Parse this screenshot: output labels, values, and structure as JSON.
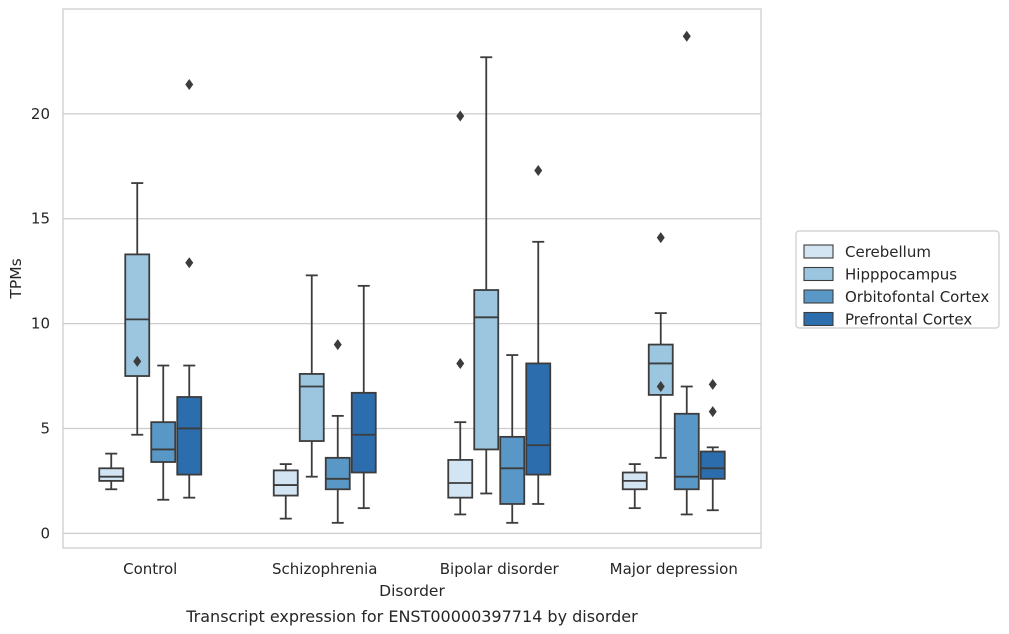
{
  "chart_data": {
    "type": "box",
    "caption": "Transcript expression for ENST00000397714 by disorder",
    "xlabel": "Disorder",
    "ylabel": "TPMs",
    "ylim": [
      -0.7,
      25
    ],
    "yticks": [
      0,
      5,
      10,
      15,
      20
    ],
    "grid": "horizontal",
    "legend_position": "right",
    "categories": [
      "Control",
      "Schizophrenia",
      "Bipolar disorder",
      "Major depression"
    ],
    "series": [
      {
        "name": "Cerebellum",
        "color": "#d3e4f3",
        "boxes": [
          {
            "whislo": 2.1,
            "q1": 2.5,
            "med": 2.7,
            "q3": 3.1,
            "whishi": 3.8,
            "fliers": []
          },
          {
            "whislo": 0.7,
            "q1": 1.8,
            "med": 2.3,
            "q3": 3.0,
            "whishi": 3.3,
            "fliers": []
          },
          {
            "whislo": 0.9,
            "q1": 1.7,
            "med": 2.4,
            "q3": 3.5,
            "whishi": 5.3,
            "fliers": [
              19.9,
              8.1
            ]
          },
          {
            "whislo": 1.2,
            "q1": 2.1,
            "med": 2.5,
            "q3": 2.9,
            "whishi": 3.3,
            "fliers": []
          }
        ]
      },
      {
        "name": "Hipppocampus",
        "color": "#9cc5df",
        "boxes": [
          {
            "whislo": 4.7,
            "q1": 7.5,
            "med": 10.2,
            "q3": 13.3,
            "whishi": 16.7,
            "fliers": [
              8.2
            ]
          },
          {
            "whislo": 2.7,
            "q1": 4.4,
            "med": 7.0,
            "q3": 7.6,
            "whishi": 12.3,
            "fliers": []
          },
          {
            "whislo": 1.9,
            "q1": 4.0,
            "med": 10.3,
            "q3": 11.6,
            "whishi": 22.7,
            "fliers": []
          },
          {
            "whislo": 3.6,
            "q1": 6.6,
            "med": 8.1,
            "q3": 9.0,
            "whishi": 10.5,
            "fliers": [
              14.1,
              7.0
            ]
          }
        ]
      },
      {
        "name": "Orbitofontal Cortex",
        "color": "#5998c6",
        "boxes": [
          {
            "whislo": 1.6,
            "q1": 3.4,
            "med": 4.0,
            "q3": 5.3,
            "whishi": 8.0,
            "fliers": []
          },
          {
            "whislo": 0.5,
            "q1": 2.1,
            "med": 2.6,
            "q3": 3.6,
            "whishi": 5.6,
            "fliers": [
              9.0
            ]
          },
          {
            "whislo": 0.5,
            "q1": 1.4,
            "med": 3.1,
            "q3": 4.6,
            "whishi": 8.5,
            "fliers": []
          },
          {
            "whislo": 0.9,
            "q1": 2.1,
            "med": 2.7,
            "q3": 5.7,
            "whishi": 7.0,
            "fliers": [
              23.7
            ]
          }
        ]
      },
      {
        "name": "Prefrontal Cortex",
        "color": "#2c6ead",
        "boxes": [
          {
            "whislo": 1.7,
            "q1": 2.8,
            "med": 5.0,
            "q3": 6.5,
            "whishi": 8.0,
            "fliers": [
              21.4,
              12.9
            ]
          },
          {
            "whislo": 1.2,
            "q1": 2.9,
            "med": 4.7,
            "q3": 6.7,
            "whishi": 11.8,
            "fliers": []
          },
          {
            "whislo": 1.4,
            "q1": 2.8,
            "med": 4.2,
            "q3": 8.1,
            "whishi": 13.9,
            "fliers": [
              17.3
            ]
          },
          {
            "whislo": 1.1,
            "q1": 2.6,
            "med": 3.1,
            "q3": 3.9,
            "whishi": 4.1,
            "fliers": [
              7.1,
              5.8
            ]
          }
        ]
      }
    ]
  }
}
